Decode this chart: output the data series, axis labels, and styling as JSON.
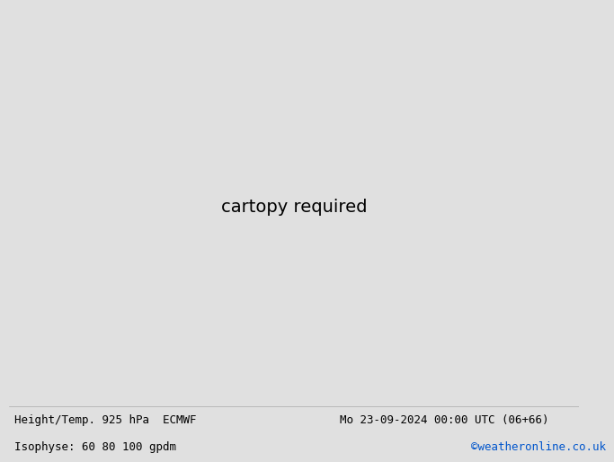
{
  "title_left": "Height/Temp. 925 hPa  ECMWF",
  "title_right": "Mo 23-09-2024 00:00 UTC (06+66)",
  "subtitle_left": "Isophyse: 60 80 100 gpdm",
  "subtitle_right": "©weatheronline.co.uk",
  "bg_color": "#e0e0e0",
  "land_color": "#b8f0a0",
  "sea_color": "#e0e0e0",
  "border_color": "#888888",
  "grey_line_color": "#888888",
  "title_color": "#000000",
  "subtitle_right_color": "#0055cc",
  "font_family": "monospace",
  "label_fontsize": 9,
  "subtitle_fontsize": 9,
  "extent": [
    -25,
    12,
    43,
    63
  ],
  "grey_label_color": "#555555",
  "temp_colors": [
    "#888888",
    "#888888",
    "#ff00ff",
    "#ff0000",
    "#ff8800",
    "#ffcc00",
    "#00cc00",
    "#00cccc",
    "#0088ff",
    "#8800ff",
    "#ff00aa",
    "#00aa44",
    "#cc8800",
    "#008888",
    "#cc0000",
    "#4444ff",
    "#ff44ff",
    "#44ffff",
    "#ffff44",
    "#44ff44"
  ]
}
